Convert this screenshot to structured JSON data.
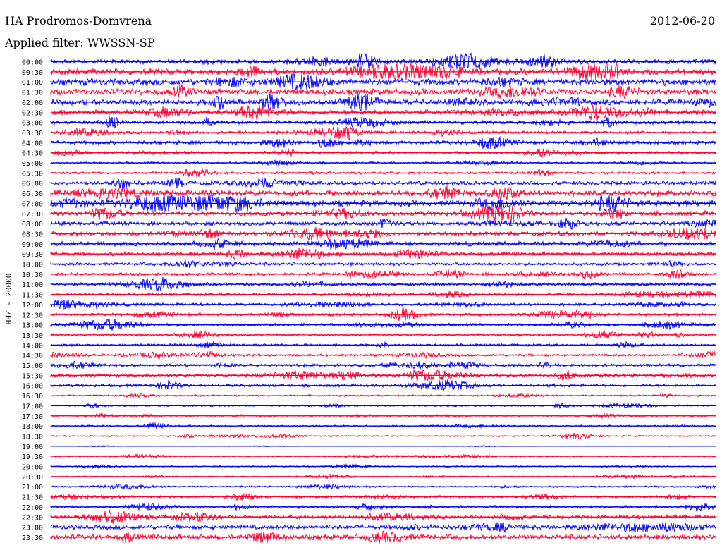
{
  "header": {
    "station": "HA Prodromos-Domvrena",
    "date": "2012-06-20",
    "filter": "Applied filter: WWSSN-SP"
  },
  "chart_data": {
    "type": "helicorder",
    "title": "HA Prodromos-Domvrena",
    "channel_label": "HHZ - 20000",
    "date": "2012-06-20",
    "row_interval_minutes": 30,
    "colors": [
      "#0000ff",
      "#ff0033"
    ],
    "rows": [
      {
        "time": "00:00",
        "level": 0.55
      },
      {
        "time": "00:30",
        "level": 0.75
      },
      {
        "time": "01:00",
        "level": 0.8
      },
      {
        "time": "01:30",
        "level": 0.75
      },
      {
        "time": "02:00",
        "level": 0.7
      },
      {
        "time": "02:30",
        "level": 0.6
      },
      {
        "time": "03:00",
        "level": 0.45
      },
      {
        "time": "03:30",
        "level": 0.35
      },
      {
        "time": "04:00",
        "level": 0.45
      },
      {
        "time": "04:30",
        "level": 0.35
      },
      {
        "time": "05:00",
        "level": 0.25
      },
      {
        "time": "05:30",
        "level": 0.3
      },
      {
        "time": "06:00",
        "level": 0.5
      },
      {
        "time": "06:30",
        "level": 0.7
      },
      {
        "time": "07:00",
        "level": 0.75
      },
      {
        "time": "07:30",
        "level": 0.6
      },
      {
        "time": "08:00",
        "level": 0.5
      },
      {
        "time": "08:30",
        "level": 0.5
      },
      {
        "time": "09:00",
        "level": 0.5
      },
      {
        "time": "09:30",
        "level": 0.45
      },
      {
        "time": "10:00",
        "level": 0.35
      },
      {
        "time": "10:30",
        "level": 0.35
      },
      {
        "time": "11:00",
        "level": 0.4
      },
      {
        "time": "11:30",
        "level": 0.35
      },
      {
        "time": "12:00",
        "level": 0.35
      },
      {
        "time": "12:30",
        "level": 0.35
      },
      {
        "time": "13:00",
        "level": 0.35
      },
      {
        "time": "13:30",
        "level": 0.3
      },
      {
        "time": "14:00",
        "level": 0.3
      },
      {
        "time": "14:30",
        "level": 0.3
      },
      {
        "time": "15:00",
        "level": 0.35
      },
      {
        "time": "15:30",
        "level": 0.4
      },
      {
        "time": "16:00",
        "level": 0.35
      },
      {
        "time": "16:30",
        "level": 0.2
      },
      {
        "time": "17:00",
        "level": 0.2
      },
      {
        "time": "17:30",
        "level": 0.2
      },
      {
        "time": "18:00",
        "level": 0.2
      },
      {
        "time": "18:30",
        "level": 0.15
      },
      {
        "time": "19:00",
        "level": 0.05
      },
      {
        "time": "19:30",
        "level": 0.15
      },
      {
        "time": "20:00",
        "level": 0.15
      },
      {
        "time": "20:30",
        "level": 0.15
      },
      {
        "time": "21:00",
        "level": 0.2
      },
      {
        "time": "21:30",
        "level": 0.3
      },
      {
        "time": "22:00",
        "level": 0.35
      },
      {
        "time": "22:30",
        "level": 0.45
      },
      {
        "time": "23:00",
        "level": 0.55
      },
      {
        "time": "23:30",
        "level": 0.65
      }
    ]
  }
}
